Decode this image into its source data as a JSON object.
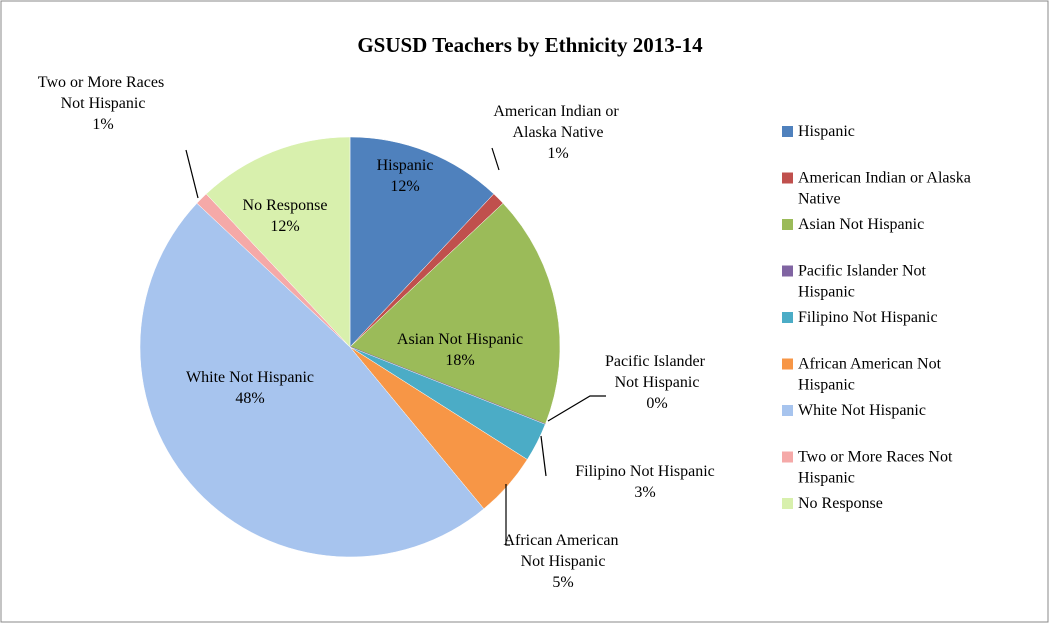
{
  "chart_data": {
    "type": "pie",
    "title": "GSUSD Teachers by Ethnicity 2013-14",
    "categories": [
      "Hispanic",
      "American Indian or Alaska Native",
      "Asian Not Hispanic",
      "Pacific Islander Not Hispanic",
      "Filipino Not Hispanic",
      "African American Not Hispanic",
      "White Not Hispanic",
      "Two or More Races Not Hispanic",
      "No Response"
    ],
    "values": [
      12,
      1,
      18,
      0,
      3,
      5,
      48,
      1,
      12
    ],
    "value_labels": [
      "12%",
      "1%",
      "18%",
      "0%",
      "3%",
      "5%",
      "48%",
      "1%",
      "12%"
    ],
    "colors": [
      "#4f81bd",
      "#c0504d",
      "#9bbb59",
      "#8064a2",
      "#4bacc6",
      "#f79646",
      "#a7c4ee",
      "#f5a9a8",
      "#d8f0ad"
    ],
    "legend": "right"
  }
}
